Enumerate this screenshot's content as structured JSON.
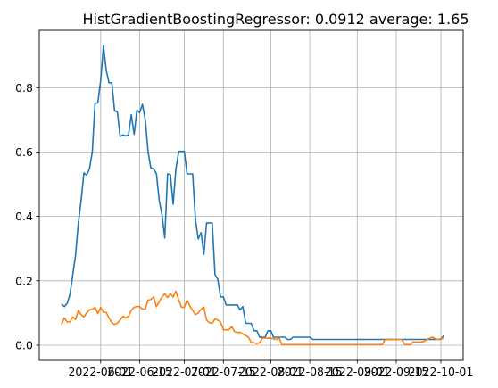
{
  "chart_data": {
    "type": "line",
    "title": "HistGradientBoostingRegressor: 0.0912 average: 1.65",
    "xlabel": "",
    "ylabel": "",
    "grid": true,
    "x_tick_labels": [
      "2022-06-01",
      "2022-06-15",
      "2022-07-01",
      "2022-07-15",
      "2022-08-01",
      "2022-08-15",
      "2022-09-01",
      "2022-09-15",
      "2022-10-01"
    ],
    "x_tick_dates": [
      "2022-06-01",
      "2022-06-15",
      "2022-07-01",
      "2022-07-15",
      "2022-08-01",
      "2022-08-15",
      "2022-09-01",
      "2022-09-15",
      "2022-10-01"
    ],
    "y_ticks": [
      0.0,
      0.2,
      0.4,
      0.6,
      0.8
    ],
    "y_tick_labels": [
      "0.0",
      "0.2",
      "0.4",
      "0.6",
      "0.8"
    ],
    "xlim": [
      "2022-05-10",
      "2022-10-09"
    ],
    "ylim": [
      -0.047,
      0.978
    ],
    "series": [
      {
        "color": "#1f77b4",
        "points": [
          [
            "2022-05-18",
            0.128
          ],
          [
            "2022-05-19",
            0.12
          ],
          [
            "2022-05-20",
            0.13
          ],
          [
            "2022-05-21",
            0.158
          ],
          [
            "2022-05-22",
            0.218
          ],
          [
            "2022-05-23",
            0.278
          ],
          [
            "2022-05-24",
            0.38
          ],
          [
            "2022-05-25",
            0.45
          ],
          [
            "2022-05-26",
            0.535
          ],
          [
            "2022-05-27",
            0.528
          ],
          [
            "2022-05-28",
            0.548
          ],
          [
            "2022-05-29",
            0.6
          ],
          [
            "2022-05-30",
            0.752
          ],
          [
            "2022-05-31",
            0.752
          ],
          [
            "2022-06-01",
            0.822
          ],
          [
            "2022-06-02",
            0.93
          ],
          [
            "2022-06-03",
            0.855
          ],
          [
            "2022-06-04",
            0.815
          ],
          [
            "2022-06-05",
            0.815
          ],
          [
            "2022-06-06",
            0.728
          ],
          [
            "2022-06-07",
            0.725
          ],
          [
            "2022-06-08",
            0.648
          ],
          [
            "2022-06-09",
            0.653
          ],
          [
            "2022-06-10",
            0.65
          ],
          [
            "2022-06-11",
            0.653
          ],
          [
            "2022-06-12",
            0.716
          ],
          [
            "2022-06-13",
            0.655
          ],
          [
            "2022-06-14",
            0.73
          ],
          [
            "2022-06-15",
            0.722
          ],
          [
            "2022-06-16",
            0.748
          ],
          [
            "2022-06-17",
            0.7
          ],
          [
            "2022-06-18",
            0.602
          ],
          [
            "2022-06-19",
            0.55
          ],
          [
            "2022-06-20",
            0.548
          ],
          [
            "2022-06-21",
            0.532
          ],
          [
            "2022-06-22",
            0.45
          ],
          [
            "2022-06-23",
            0.405
          ],
          [
            "2022-06-24",
            0.333
          ],
          [
            "2022-06-25",
            0.532
          ],
          [
            "2022-06-26",
            0.53
          ],
          [
            "2022-06-27",
            0.438
          ],
          [
            "2022-06-28",
            0.548
          ],
          [
            "2022-06-29",
            0.602
          ],
          [
            "2022-06-30",
            0.602
          ],
          [
            "2022-07-01",
            0.602
          ],
          [
            "2022-07-02",
            0.532
          ],
          [
            "2022-07-03",
            0.532
          ],
          [
            "2022-07-04",
            0.532
          ],
          [
            "2022-07-05",
            0.39
          ],
          [
            "2022-07-06",
            0.33
          ],
          [
            "2022-07-07",
            0.35
          ],
          [
            "2022-07-08",
            0.282
          ],
          [
            "2022-07-09",
            0.38
          ],
          [
            "2022-07-10",
            0.38
          ],
          [
            "2022-07-11",
            0.38
          ],
          [
            "2022-07-12",
            0.22
          ],
          [
            "2022-07-13",
            0.205
          ],
          [
            "2022-07-14",
            0.15
          ],
          [
            "2022-07-15",
            0.15
          ],
          [
            "2022-07-16",
            0.125
          ],
          [
            "2022-07-17",
            0.125
          ],
          [
            "2022-07-18",
            0.125
          ],
          [
            "2022-07-19",
            0.125
          ],
          [
            "2022-07-20",
            0.125
          ],
          [
            "2022-07-21",
            0.11
          ],
          [
            "2022-07-22",
            0.12
          ],
          [
            "2022-07-23",
            0.068
          ],
          [
            "2022-07-24",
            0.068
          ],
          [
            "2022-07-25",
            0.068
          ],
          [
            "2022-07-26",
            0.045
          ],
          [
            "2022-07-27",
            0.045
          ],
          [
            "2022-07-28",
            0.025
          ],
          [
            "2022-07-29",
            0.025
          ],
          [
            "2022-07-30",
            0.025
          ],
          [
            "2022-07-31",
            0.045
          ],
          [
            "2022-08-01",
            0.045
          ],
          [
            "2022-08-02",
            0.025
          ],
          [
            "2022-08-03",
            0.025
          ],
          [
            "2022-08-04",
            0.025
          ],
          [
            "2022-08-05",
            0.025
          ],
          [
            "2022-08-06",
            0.025
          ],
          [
            "2022-08-07",
            0.018
          ],
          [
            "2022-08-08",
            0.018
          ],
          [
            "2022-08-09",
            0.025
          ],
          [
            "2022-08-15",
            0.025
          ],
          [
            "2022-08-16",
            0.018
          ],
          [
            "2022-09-10",
            0.018
          ],
          [
            "2022-09-30",
            0.018
          ],
          [
            "2022-10-01",
            0.018
          ],
          [
            "2022-10-02",
            0.03
          ]
        ]
      },
      {
        "color": "#ff7f0e",
        "points": [
          [
            "2022-05-18",
            0.065
          ],
          [
            "2022-05-19",
            0.085
          ],
          [
            "2022-05-20",
            0.072
          ],
          [
            "2022-05-21",
            0.072
          ],
          [
            "2022-05-22",
            0.088
          ],
          [
            "2022-05-23",
            0.08
          ],
          [
            "2022-05-24",
            0.108
          ],
          [
            "2022-05-25",
            0.095
          ],
          [
            "2022-05-26",
            0.088
          ],
          [
            "2022-05-27",
            0.1
          ],
          [
            "2022-05-28",
            0.11
          ],
          [
            "2022-05-29",
            0.112
          ],
          [
            "2022-05-30",
            0.118
          ],
          [
            "2022-05-31",
            0.098
          ],
          [
            "2022-06-01",
            0.118
          ],
          [
            "2022-06-02",
            0.102
          ],
          [
            "2022-06-03",
            0.102
          ],
          [
            "2022-06-04",
            0.085
          ],
          [
            "2022-06-05",
            0.07
          ],
          [
            "2022-06-06",
            0.065
          ],
          [
            "2022-06-07",
            0.068
          ],
          [
            "2022-06-08",
            0.078
          ],
          [
            "2022-06-09",
            0.09
          ],
          [
            "2022-06-10",
            0.085
          ],
          [
            "2022-06-11",
            0.09
          ],
          [
            "2022-06-12",
            0.108
          ],
          [
            "2022-06-13",
            0.118
          ],
          [
            "2022-06-14",
            0.12
          ],
          [
            "2022-06-15",
            0.12
          ],
          [
            "2022-06-16",
            0.112
          ],
          [
            "2022-06-17",
            0.112
          ],
          [
            "2022-06-18",
            0.14
          ],
          [
            "2022-06-19",
            0.142
          ],
          [
            "2022-06-20",
            0.15
          ],
          [
            "2022-06-21",
            0.12
          ],
          [
            "2022-06-22",
            0.135
          ],
          [
            "2022-06-23",
            0.15
          ],
          [
            "2022-06-24",
            0.16
          ],
          [
            "2022-06-25",
            0.148
          ],
          [
            "2022-06-26",
            0.16
          ],
          [
            "2022-06-27",
            0.15
          ],
          [
            "2022-06-28",
            0.168
          ],
          [
            "2022-06-29",
            0.14
          ],
          [
            "2022-06-30",
            0.118
          ],
          [
            "2022-07-01",
            0.118
          ],
          [
            "2022-07-02",
            0.14
          ],
          [
            "2022-07-03",
            0.122
          ],
          [
            "2022-07-04",
            0.108
          ],
          [
            "2022-07-05",
            0.095
          ],
          [
            "2022-07-06",
            0.1
          ],
          [
            "2022-07-07",
            0.112
          ],
          [
            "2022-07-08",
            0.118
          ],
          [
            "2022-07-09",
            0.078
          ],
          [
            "2022-07-10",
            0.07
          ],
          [
            "2022-07-11",
            0.068
          ],
          [
            "2022-07-12",
            0.082
          ],
          [
            "2022-07-13",
            0.078
          ],
          [
            "2022-07-14",
            0.072
          ],
          [
            "2022-07-15",
            0.048
          ],
          [
            "2022-07-16",
            0.048
          ],
          [
            "2022-07-17",
            0.048
          ],
          [
            "2022-07-18",
            0.058
          ],
          [
            "2022-07-19",
            0.042
          ],
          [
            "2022-07-20",
            0.04
          ],
          [
            "2022-07-21",
            0.04
          ],
          [
            "2022-07-22",
            0.035
          ],
          [
            "2022-07-23",
            0.03
          ],
          [
            "2022-07-24",
            0.025
          ],
          [
            "2022-07-25",
            0.008
          ],
          [
            "2022-07-26",
            0.008
          ],
          [
            "2022-07-27",
            0.005
          ],
          [
            "2022-07-28",
            0.008
          ],
          [
            "2022-07-29",
            0.022
          ],
          [
            "2022-07-30",
            0.022
          ],
          [
            "2022-07-31",
            0.022
          ],
          [
            "2022-08-01",
            0.022
          ],
          [
            "2022-08-02",
            0.02
          ],
          [
            "2022-08-03",
            0.018
          ],
          [
            "2022-08-04",
            0.022
          ],
          [
            "2022-08-05",
            0.002
          ],
          [
            "2022-08-06",
            0.002
          ],
          [
            "2022-09-10",
            0.002
          ],
          [
            "2022-09-11",
            0.018
          ],
          [
            "2022-09-17",
            0.018
          ],
          [
            "2022-09-18",
            0.002
          ],
          [
            "2022-09-20",
            0.002
          ],
          [
            "2022-09-21",
            0.01
          ],
          [
            "2022-09-23",
            0.01
          ],
          [
            "2022-09-24",
            0.01
          ],
          [
            "2022-09-25",
            0.012
          ],
          [
            "2022-09-26",
            0.018
          ],
          [
            "2022-09-28",
            0.025
          ],
          [
            "2022-09-29",
            0.02
          ],
          [
            "2022-09-30",
            0.018
          ],
          [
            "2022-10-01",
            0.02
          ],
          [
            "2022-10-02",
            0.022
          ]
        ]
      }
    ]
  }
}
